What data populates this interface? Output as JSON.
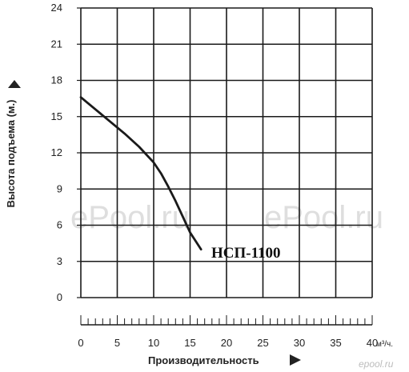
{
  "chart_data": {
    "type": "line",
    "title": "",
    "ylabel": "Высота подъема (м.)",
    "xlabel": "Производительность",
    "x_unit": "м³/ч.",
    "xlim": [
      0,
      40
    ],
    "ylim": [
      0,
      24
    ],
    "x_ticks": [
      0,
      5,
      10,
      15,
      20,
      25,
      30,
      35,
      40
    ],
    "y_ticks": [
      0,
      3,
      6,
      9,
      12,
      15,
      18,
      21,
      24
    ],
    "x_minor_step": 1,
    "grid": true,
    "series": [
      {
        "name": "НСП-1100",
        "color": "#1a1a1a",
        "points": [
          [
            0,
            16.6
          ],
          [
            2,
            15.6
          ],
          [
            4,
            14.6
          ],
          [
            6,
            13.6
          ],
          [
            8,
            12.5
          ],
          [
            10,
            11.2
          ],
          [
            11,
            10.3
          ],
          [
            12,
            9.2
          ],
          [
            13,
            8.0
          ],
          [
            14,
            6.7
          ],
          [
            15,
            5.4
          ],
          [
            16.5,
            4.0
          ]
        ]
      }
    ]
  },
  "watermarks": {
    "left": "ePool.ru",
    "right": "ePool.ru",
    "corner": "epool.ru"
  }
}
